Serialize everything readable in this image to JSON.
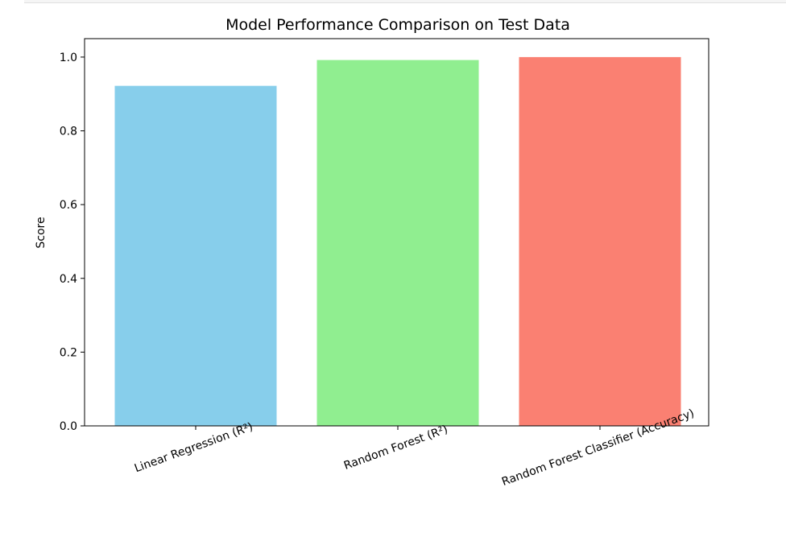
{
  "chart_data": {
    "type": "bar",
    "title": "Model Performance Comparison on Test Data",
    "xlabel": "",
    "ylabel": "Score",
    "categories": [
      "Linear Regression (R²)",
      "Random Forest (R²)",
      "Random Forest Classifier (Accuracy)"
    ],
    "values": [
      0.922,
      0.992,
      1.0
    ],
    "colors": [
      "#87CEEB",
      "#90EE90",
      "#FA8072"
    ],
    "ylim": [
      0,
      1.05
    ],
    "yticks": [
      "0.0",
      "0.2",
      "0.4",
      "0.6",
      "0.8",
      "1.0"
    ],
    "grid": false,
    "legend": false
  }
}
